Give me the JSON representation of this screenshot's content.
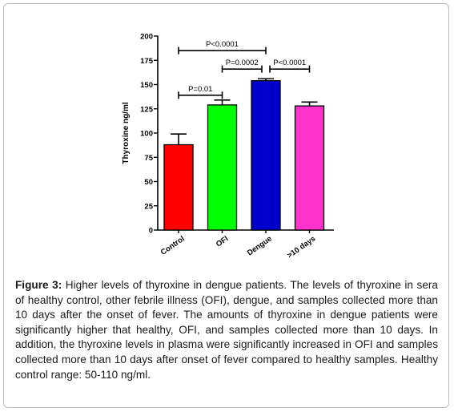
{
  "chart_data": {
    "type": "bar",
    "categories": [
      "Control",
      "OFI",
      "Dengue",
      ">10 days"
    ],
    "values": [
      88,
      129,
      154,
      128
    ],
    "errors": [
      11,
      5,
      2,
      4
    ],
    "colors": [
      "#ff0000",
      "#00ff00",
      "#0000cc",
      "#ff33cc"
    ],
    "ylabel": "Thyroxine ng/ml",
    "ylim": [
      0,
      200
    ],
    "yticks": [
      0,
      25,
      50,
      75,
      100,
      125,
      150,
      175,
      200
    ],
    "grid": false,
    "annotations": [
      {
        "label": "P<0.0001",
        "from": 0,
        "to": 2,
        "level": 185
      },
      {
        "label": "P=0.0002",
        "from": 1,
        "to": 2,
        "level": 166
      },
      {
        "label": "P<0.0001",
        "from": 2,
        "to": 3,
        "level": 166
      },
      {
        "label": "P=0.01",
        "from": 0,
        "to": 1,
        "level": 139
      }
    ]
  },
  "caption": {
    "label": "Figure 3:",
    "text": " Higher levels of thyroxine in dengue patients. The levels of thyroxine in sera of healthy control, other febrile illness (OFI), dengue, and samples collected more than 10 days after the onset of fever. The amounts of thyroxine in dengue patients were significantly higher that healthy, OFI, and samples collected more than 10 days. In addition, the thyroxine levels in plasma were significantly increased in OFI and samples collected more than 10 days after onset of fever compared to healthy samples. Healthy control range: 50-110 ng/ml."
  }
}
